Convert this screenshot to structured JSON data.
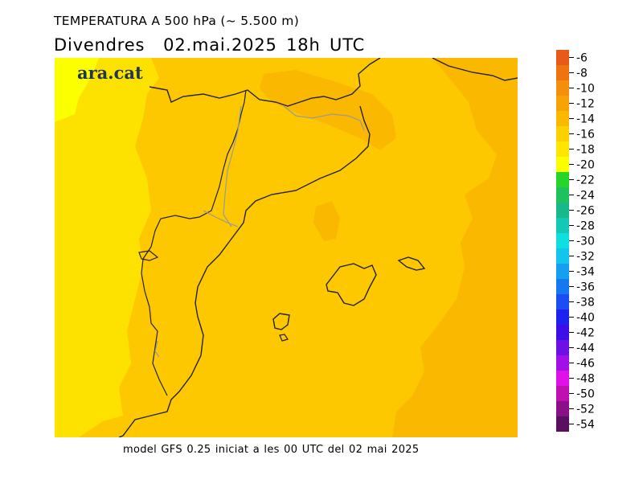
{
  "header": {
    "title_line1": "TEMPERATURA A 500 hPa (~ 5.500 m)",
    "title_line2": "Divendres  02.mai.2025 18h UTC"
  },
  "logo": {
    "text": "ara.cat"
  },
  "footer": {
    "text": "model GFS 0.25 iniciat a les 00 UTC del 02 mai 2025"
  },
  "legend": {
    "unit_hint": "",
    "labels": [
      "-6",
      "-8",
      "-10",
      "-12",
      "-14",
      "-16",
      "-18",
      "-20",
      "-22",
      "-24",
      "-26",
      "-28",
      "-30",
      "-32",
      "-34",
      "-36",
      "-38",
      "-40",
      "-42",
      "-44",
      "-46",
      "-48",
      "-50",
      "-52",
      "-54"
    ],
    "colors": [
      "#e8591a",
      "#ee7410",
      "#f38f0c",
      "#f6a306",
      "#fab800",
      "#fdd000",
      "#fde600",
      "#fbff00",
      "#26d42a",
      "#1dc25c",
      "#19b88a",
      "#14c8b8",
      "#0ee0e0",
      "#14c4ec",
      "#159ff0",
      "#1677f0",
      "#1a4ef2",
      "#1d22f0",
      "#3d0fe6",
      "#6d10e6",
      "#a010e8",
      "#e010e8",
      "#c010b0",
      "#8a1088",
      "#5a1060"
    ]
  },
  "map": {
    "field_colors": {
      "t12": "#fab800",
      "t14": "#fdc800",
      "t16": "#fde200",
      "t18": "#fbff00"
    }
  }
}
